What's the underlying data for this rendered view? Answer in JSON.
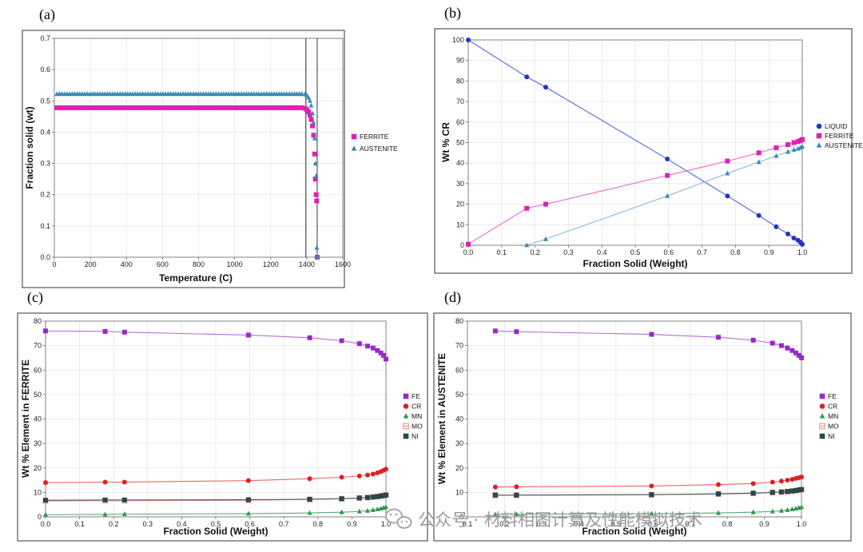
{
  "chart_data": [
    {
      "panel": "(a)",
      "type": "scatter",
      "xlabel": "Temperature (C)",
      "ylabel": "Fraction solid (wt)",
      "xlim": [
        0,
        1600
      ],
      "ylim": [
        0,
        0.7
      ],
      "xticks": [
        0,
        200,
        400,
        600,
        800,
        1000,
        1200,
        1400,
        1600
      ],
      "yticks": [
        0.0,
        0.1,
        0.2,
        0.3,
        0.4,
        0.5,
        0.6,
        0.7
      ],
      "xtick_labels": [
        "0",
        "200",
        "400",
        "600",
        "800",
        "1000",
        "1200",
        "1400",
        "1600"
      ],
      "ytick_labels": [
        "0.0",
        "0.1",
        "0.2",
        "0.3",
        "0.4",
        "0.5",
        "0.6",
        "0.7"
      ],
      "vlines": [
        1395,
        1458
      ],
      "series": [
        {
          "name": "FERRITE",
          "color": "#e020b0",
          "marker": "square",
          "flat": {
            "y": 0.478,
            "x_from": 15,
            "x_to": 1380,
            "step": 14
          },
          "x": [
            1390,
            1400,
            1410,
            1418,
            1425,
            1432,
            1438,
            1444,
            1448,
            1452,
            1455,
            1458
          ],
          "y": [
            0.476,
            0.472,
            0.465,
            0.455,
            0.44,
            0.42,
            0.39,
            0.33,
            0.25,
            0.2,
            0.18,
            0.0
          ]
        },
        {
          "name": "AUSTENITE",
          "color": "#3a88b8",
          "marker": "triangle",
          "flat": {
            "y": 0.522,
            "x_from": 15,
            "x_to": 1380,
            "step": 14
          },
          "x": [
            1390,
            1400,
            1410,
            1418,
            1425,
            1432,
            1438,
            1444,
            1448,
            1452,
            1456,
            1458
          ],
          "y": [
            0.521,
            0.518,
            0.51,
            0.5,
            0.485,
            0.46,
            0.43,
            0.38,
            0.3,
            0.26,
            0.03,
            0.0
          ]
        }
      ],
      "legend": [
        "FERRITE",
        "AUSTENITE"
      ]
    },
    {
      "panel": "(b)",
      "type": "line",
      "xlabel": "Fraction Solid (Weight)",
      "ylabel": "Wt % CR",
      "xlim": [
        0,
        1.0
      ],
      "ylim": [
        0,
        100
      ],
      "xticks": [
        0,
        0.1,
        0.2,
        0.3,
        0.4,
        0.5,
        0.6,
        0.7,
        0.8,
        0.9,
        1.0
      ],
      "yticks": [
        0,
        10,
        20,
        30,
        40,
        50,
        60,
        70,
        80,
        90,
        100
      ],
      "xtick_labels": [
        "0.0",
        "0.1",
        "0.2",
        "0.3",
        "0.4",
        "0.5",
        "0.6",
        "0.7",
        "0.8",
        "0.9",
        "1.0"
      ],
      "ytick_labels": [
        "0",
        "10",
        "20",
        "30",
        "40",
        "50",
        "60",
        "70",
        "80",
        "90",
        "100"
      ],
      "series": [
        {
          "name": "LIQUID",
          "color": "#2233cc",
          "line": "#5566e0",
          "marker": "circle",
          "x": [
            0.0,
            0.175,
            0.232,
            0.596,
            0.776,
            0.87,
            0.922,
            0.957,
            0.975,
            0.987,
            0.994,
            1.0
          ],
          "y": [
            100,
            82,
            77,
            42,
            24,
            14.5,
            9,
            5.5,
            3.5,
            2.5,
            1.5,
            0.5
          ]
        },
        {
          "name": "FERRITE",
          "color": "#e020b0",
          "line": "#ee66cc",
          "marker": "square",
          "x": [
            0.0,
            0.175,
            0.232,
            0.596,
            0.776,
            0.87,
            0.922,
            0.957,
            0.975,
            0.987,
            0.994,
            1.0
          ],
          "y": [
            0.5,
            18,
            20,
            34,
            41,
            45,
            47.5,
            49,
            50,
            50.5,
            51,
            51.5
          ]
        },
        {
          "name": "AUSTENITE",
          "color": "#3a88b8",
          "line": "#88bbdd",
          "marker": "triangle",
          "x": [
            0.175,
            0.232,
            0.596,
            0.776,
            0.87,
            0.922,
            0.957,
            0.975,
            0.987,
            0.994,
            1.0
          ],
          "y": [
            0,
            3,
            24,
            35,
            40.5,
            43.5,
            45.5,
            46.5,
            47,
            47.5,
            48
          ]
        }
      ],
      "legend": [
        "LIQUID",
        "FERRITE",
        "AUSTENITE"
      ]
    },
    {
      "panel": "(c)",
      "type": "line",
      "xlabel": "Fraction Solid (Weight)",
      "ylabel": "Wt %  Element in FERRITE",
      "xlim": [
        0,
        1.0
      ],
      "ylim": [
        0,
        80
      ],
      "xticks": [
        0,
        0.1,
        0.2,
        0.3,
        0.4,
        0.5,
        0.6,
        0.7,
        0.8,
        0.9,
        1.0
      ],
      "yticks": [
        0,
        10,
        20,
        30,
        40,
        50,
        60,
        70,
        80
      ],
      "xtick_labels": [
        "0.0",
        "0.1",
        "0.2",
        "0.3",
        "0.4",
        "0.5",
        "0.6",
        "0.7",
        "0.8",
        "0.9",
        "1.0"
      ],
      "ytick_labels": [
        "0",
        "10",
        "20",
        "30",
        "40",
        "50",
        "60",
        "70",
        "80"
      ],
      "series": [
        {
          "name": "FE",
          "color": "#9a28c8",
          "line": "#b070d8",
          "marker": "square",
          "x": [
            0.0,
            0.175,
            0.232,
            0.596,
            0.776,
            0.87,
            0.922,
            0.946,
            0.962,
            0.975,
            0.985,
            0.993,
            1.0
          ],
          "y": [
            76,
            75.8,
            75.5,
            74.3,
            73.2,
            72,
            70.8,
            69.8,
            69,
            68,
            67,
            66,
            64.5
          ]
        },
        {
          "name": "CR",
          "color": "#e02020",
          "line": "#ee6666",
          "marker": "circle",
          "x": [
            0.0,
            0.175,
            0.232,
            0.596,
            0.776,
            0.87,
            0.922,
            0.946,
            0.962,
            0.975,
            0.985,
            0.993,
            1.0
          ],
          "y": [
            14,
            14.2,
            14.2,
            14.8,
            15.6,
            16.2,
            16.7,
            17.1,
            17.5,
            18,
            18.5,
            19,
            19.5
          ]
        },
        {
          "name": "MN",
          "color": "#2a9a4a",
          "line": "#55aa77",
          "marker": "triangle",
          "x": [
            0.0,
            0.175,
            0.232,
            0.596,
            0.776,
            0.87,
            0.922,
            0.946,
            0.962,
            0.975,
            0.985,
            0.993,
            1.0
          ],
          "y": [
            0.9,
            1,
            1.1,
            1.3,
            1.6,
            1.9,
            2.2,
            2.5,
            2.8,
            3.1,
            3.4,
            3.7,
            4
          ]
        },
        {
          "name": "MO",
          "color": "#ee8888",
          "line": "#ee8888",
          "marker": "hollow-square",
          "x": [
            0.0,
            0.175,
            0.232,
            0.596,
            0.776,
            0.87,
            0.922,
            0.946,
            0.962,
            0.975,
            0.985,
            0.993,
            1.0
          ],
          "y": [
            6.5,
            6.6,
            6.6,
            6.8,
            7.1,
            7.4,
            7.7,
            7.9,
            8.1,
            8.3,
            8.5,
            8.7,
            8.9
          ]
        },
        {
          "name": "NI",
          "color": "#254a4a",
          "line": "#3a5e5e",
          "marker": "square",
          "x": [
            0.0,
            0.175,
            0.232,
            0.596,
            0.776,
            0.87,
            0.922,
            0.946,
            0.962,
            0.975,
            0.985,
            0.993,
            1.0
          ],
          "y": [
            6.8,
            6.9,
            6.9,
            7,
            7.2,
            7.4,
            7.7,
            7.9,
            8.1,
            8.3,
            8.5,
            8.7,
            8.9
          ]
        }
      ],
      "legend": [
        "FE",
        "CR",
        "MN",
        "MO",
        "NI"
      ]
    },
    {
      "panel": "(d)",
      "type": "line",
      "xlabel": "Fraction Solid (Weight)",
      "ylabel": "Wt %  Element in AUSTENITE",
      "xlim": [
        0.1,
        1.0
      ],
      "ylim": [
        0,
        80
      ],
      "xticks": [
        0.1,
        0.2,
        0.3,
        0.4,
        0.5,
        0.6,
        0.7,
        0.8,
        0.9,
        1.0
      ],
      "yticks": [
        0,
        10,
        20,
        30,
        40,
        50,
        60,
        70,
        80
      ],
      "xtick_labels": [
        "0.1",
        "0.2",
        "0.3",
        "0.4",
        "0.5",
        "0.6",
        "0.7",
        "0.8",
        "0.9",
        "1.0"
      ],
      "ytick_labels": [
        "0",
        "10",
        "20",
        "30",
        "40",
        "50",
        "60",
        "70",
        "80"
      ],
      "series": [
        {
          "name": "FE",
          "color": "#9a28c8",
          "line": "#b070d8",
          "marker": "square",
          "x": [
            0.175,
            0.232,
            0.596,
            0.776,
            0.87,
            0.922,
            0.946,
            0.962,
            0.975,
            0.985,
            0.993,
            1.0
          ],
          "y": [
            76,
            75.7,
            74.6,
            73.4,
            72.2,
            71,
            70,
            69,
            68,
            67,
            66,
            65
          ]
        },
        {
          "name": "CR",
          "color": "#e02020",
          "line": "#ee6666",
          "marker": "circle",
          "x": [
            0.175,
            0.232,
            0.596,
            0.776,
            0.87,
            0.922,
            0.946,
            0.962,
            0.975,
            0.985,
            0.993,
            1.0
          ],
          "y": [
            12.2,
            12.3,
            12.6,
            13.2,
            13.6,
            14.2,
            14.6,
            15,
            15.3,
            15.7,
            16,
            16.3
          ]
        },
        {
          "name": "MN",
          "color": "#2a9a4a",
          "line": "#55aa77",
          "marker": "triangle",
          "x": [
            0.175,
            0.232,
            0.596,
            0.776,
            0.87,
            0.922,
            0.946,
            0.962,
            0.975,
            0.985,
            0.993,
            1.0
          ],
          "y": [
            1,
            1.1,
            1.3,
            1.6,
            1.9,
            2.2,
            2.5,
            2.8,
            3.1,
            3.4,
            3.7,
            4
          ]
        },
        {
          "name": "MO",
          "color": "#ee8888",
          "line": "#ee8888",
          "marker": "hollow-square",
          "x": [
            0.175,
            0.232,
            0.596,
            0.776,
            0.87,
            0.922,
            0.946,
            0.962,
            0.975,
            0.985,
            0.993,
            1.0
          ],
          "y": [
            8.8,
            8.8,
            9,
            9.3,
            9.6,
            9.9,
            10.1,
            10.3,
            10.5,
            10.7,
            10.9,
            11.1
          ]
        },
        {
          "name": "NI",
          "color": "#254a4a",
          "line": "#3a5e5e",
          "marker": "square",
          "x": [
            0.175,
            0.232,
            0.596,
            0.776,
            0.87,
            0.922,
            0.946,
            0.962,
            0.975,
            0.985,
            0.993,
            1.0
          ],
          "y": [
            8.9,
            8.9,
            9.1,
            9.4,
            9.7,
            10,
            10.2,
            10.4,
            10.6,
            10.8,
            11,
            11.2
          ]
        }
      ],
      "legend": [
        "FE",
        "CR",
        "MN",
        "MO",
        "NI"
      ]
    }
  ],
  "watermark": {
    "text": "公众号 · 材料相图计算及性能模拟技术",
    "icon": "wechat-icon"
  }
}
